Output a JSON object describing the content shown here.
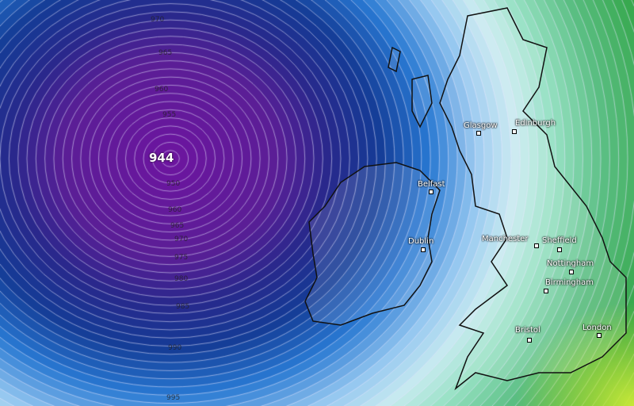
{
  "map": {
    "low_center_label": "944",
    "isobar_labels": [
      "970",
      "965",
      "960",
      "955",
      "950",
      "960",
      "965",
      "970",
      "975",
      "980",
      "985",
      "990",
      "995"
    ],
    "cities": [
      {
        "name": "Glasgow"
      },
      {
        "name": "Edinburgh"
      },
      {
        "name": "Belfast"
      },
      {
        "name": "Dublin"
      },
      {
        "name": "Manchester"
      },
      {
        "name": "Sheffield"
      },
      {
        "name": "Nottingham"
      },
      {
        "name": "Birmingham"
      },
      {
        "name": "Bristol"
      },
      {
        "name": "London"
      }
    ],
    "colors": {
      "low": "#6a1a9a",
      "deep_blue": "#1c3a8a",
      "blue": "#2a7ad0",
      "light_blue": "#a8d0f0",
      "aqua": "#9ee0c0",
      "green": "#2ea040",
      "yellow_green": "#b8e040"
    }
  }
}
